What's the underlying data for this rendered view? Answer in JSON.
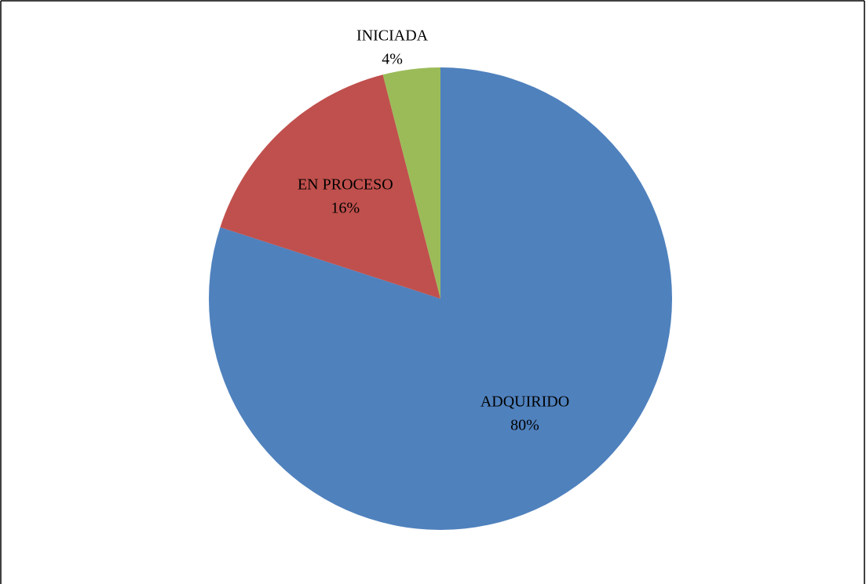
{
  "chart_data": {
    "type": "pie",
    "categories": [
      "ADQUIRIDO",
      "EN PROCESO",
      "INICIADA"
    ],
    "values": [
      80,
      16,
      4
    ],
    "value_labels": [
      "80%",
      "16%",
      "4%"
    ],
    "colors": [
      "#4f81bd",
      "#c0504d",
      "#9bbb59"
    ],
    "start": "top",
    "direction": "clockwise"
  }
}
